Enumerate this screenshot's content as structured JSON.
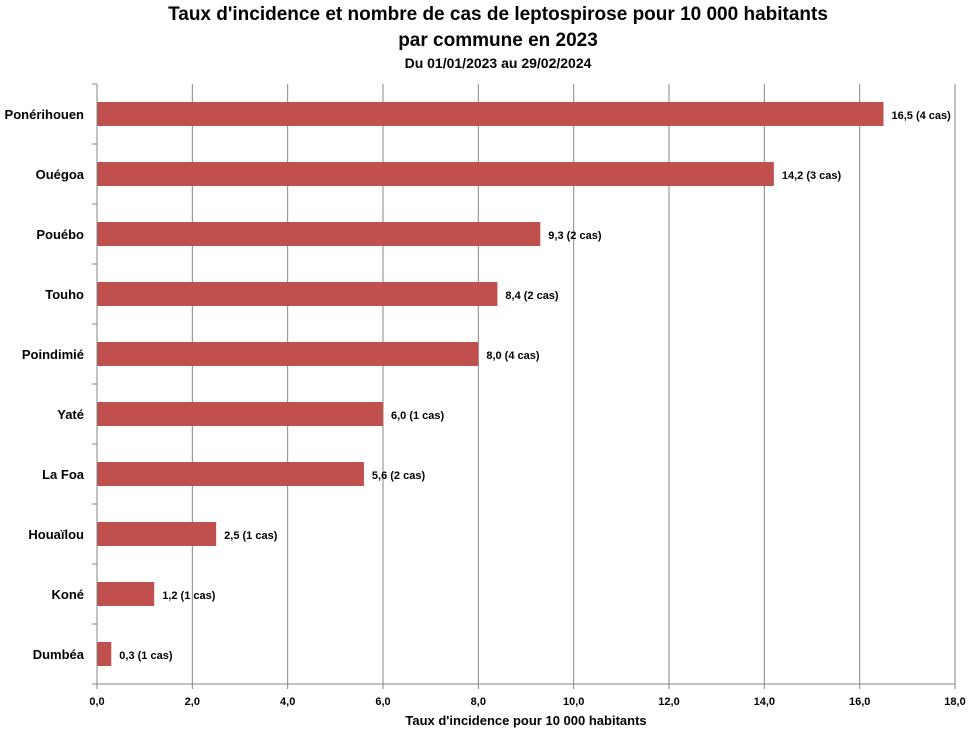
{
  "chart_data": {
    "type": "bar",
    "orientation": "horizontal",
    "title": "Taux d'incidence et nombre de cas de leptospirose pour 10 000 habitants",
    "title_line2": "par commune en 2023",
    "subtitle": "Du 01/01/2023 au 29/02/2024",
    "xlabel": "Taux d'incidence pour 10 000 habitants",
    "ylabel": "",
    "xlim": [
      0,
      18
    ],
    "x_tick_labels": [
      "0,0",
      "2,0",
      "4,0",
      "6,0",
      "8,0",
      "10,0",
      "12,0",
      "14,0",
      "16,0",
      "18,0"
    ],
    "grid": "vertical",
    "legend": "none",
    "bar_color": "#c0504d",
    "categories": [
      "Ponérihouen",
      "Ouégoa",
      "Pouébo",
      "Touho",
      "Poindimié",
      "Yaté",
      "La Foa",
      "Houaïlou",
      "Koné",
      "Dumbéa"
    ],
    "values": [
      16.5,
      14.2,
      9.3,
      8.4,
      8.0,
      6.0,
      5.6,
      2.5,
      1.2,
      0.3
    ],
    "cases": [
      4,
      3,
      2,
      2,
      4,
      1,
      2,
      1,
      1,
      1
    ],
    "data_labels": [
      "16,5 (4 cas)",
      "14,2 (3 cas)",
      "9,3 (2 cas)",
      "8,4 (2 cas)",
      "8,0 (4 cas)",
      "6,0 (1 cas)",
      "5,6 (2 cas)",
      "2,5 (1 cas)",
      "1,2 (1 cas)",
      "0,3 (1 cas)"
    ]
  }
}
